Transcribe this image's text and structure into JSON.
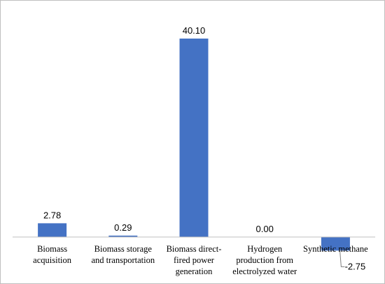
{
  "chart_data": {
    "type": "bar",
    "title": "",
    "xlabel": "",
    "ylabel": "",
    "categories": [
      [
        "Biomass",
        "acquisition"
      ],
      [
        "Biomass storage",
        "and transportation"
      ],
      [
        "Biomass direct-",
        "fired power",
        "generation"
      ],
      [
        "Hydrogen",
        "production from",
        "electrolyzed water"
      ],
      [
        "Synthetic methane"
      ]
    ],
    "values": [
      2.78,
      0.29,
      40.1,
      0.0,
      -2.75
    ],
    "value_labels": [
      "2.78",
      "0.29",
      "40.10",
      "0.00",
      "-2.75"
    ],
    "ylim": [
      -5,
      45
    ],
    "grid": false,
    "legend": "none",
    "bar_color": "#4472c4",
    "axis_color": "#bfbfbf"
  }
}
